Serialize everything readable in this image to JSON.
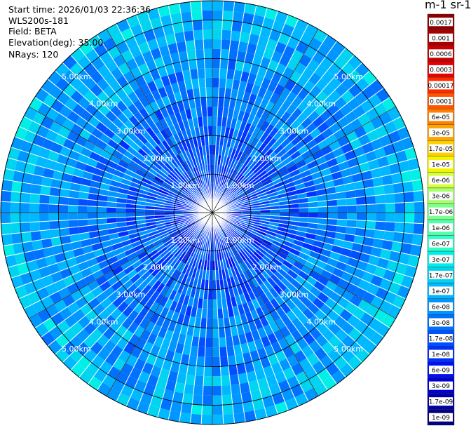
{
  "header": {
    "start_time": "Start time: 2026/01/03 22:36:36",
    "instrument": "WLS200s-181",
    "field": "Field: BETA",
    "elevation": "Elevation(deg): 35.00",
    "nrays": "NRays: 120"
  },
  "colorbar": {
    "title": "m-1 sr-1",
    "labels": [
      "0.0017",
      "0.001",
      "0.0006",
      "0.0003",
      "0.00017",
      "0.0001",
      "6e-05",
      "3e-05",
      "1.7e-05",
      "1e-05",
      "6e-06",
      "3e-06",
      "1.7e-06",
      "1e-06",
      "6e-07",
      "3e-07",
      "1.7e-07",
      "1e-07",
      "6e-08",
      "3e-08",
      "1.7e-08",
      "1e-08",
      "6e-09",
      "3e-09",
      "1.7e-09",
      "1e-09"
    ],
    "colors": [
      "#8b0000",
      "#a80000",
      "#c80000",
      "#e60000",
      "#ff2a00",
      "#ff5500",
      "#ff8000",
      "#ffa500",
      "#ffd000",
      "#f5f500",
      "#d4ff3a",
      "#a8ff6a",
      "#7cff8c",
      "#50ffaa",
      "#2effc8",
      "#00f0e8",
      "#00d4f0",
      "#00b8ff",
      "#0096ff",
      "#0070ff",
      "#0050ff",
      "#0030ff",
      "#0010f0",
      "#0000d0",
      "#0000a8",
      "#000080"
    ]
  },
  "chart_data": {
    "type": "heatmap",
    "projection": "polar (PPI)",
    "field": "BETA",
    "elevation_deg": 35.0,
    "n_rays": 120,
    "range_rings_km": [
      1,
      2,
      3,
      4,
      5
    ],
    "range_ring_labels": [
      "1.00km",
      "2.00km",
      "3.00km",
      "4.00km",
      "5.00km"
    ],
    "color_scale": "log",
    "value_range": [
      1e-09,
      0.0017
    ],
    "dominant_value_range": [
      3e-09,
      3e-07
    ]
  }
}
